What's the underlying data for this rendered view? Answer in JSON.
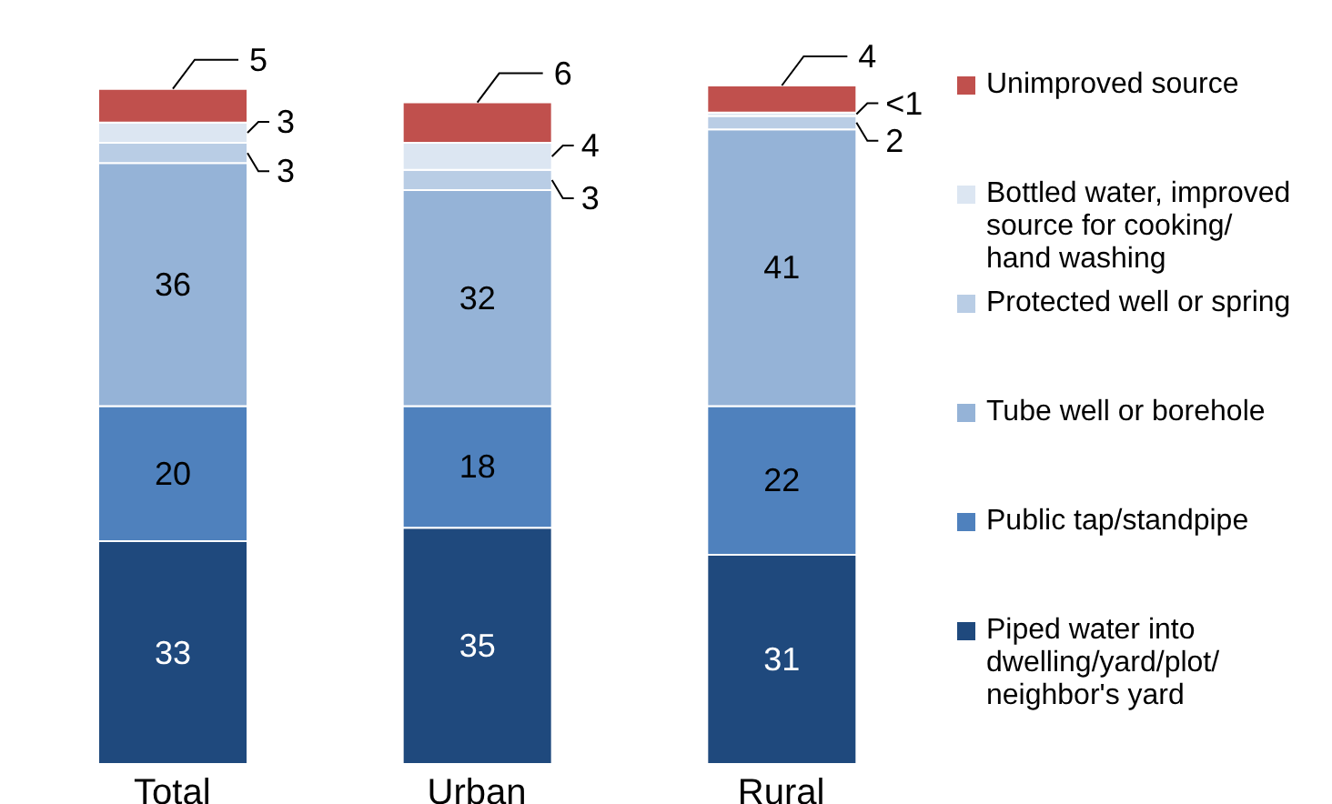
{
  "chart_data": {
    "type": "bar",
    "stacked": true,
    "categories": [
      "Total",
      "Urban",
      "Rural"
    ],
    "legend": "right",
    "series": [
      {
        "name": "Piped water into dwelling/yard/plot/ neighbor's yard",
        "color": "#1f497d",
        "values": [
          33,
          35,
          31
        ],
        "value_labels": [
          "33",
          "35",
          "31"
        ]
      },
      {
        "name": "Public tap/standpipe",
        "color": "#4f81bd",
        "values": [
          20,
          18,
          22
        ],
        "value_labels": [
          "20",
          "18",
          "22"
        ]
      },
      {
        "name": "Tube well or borehole",
        "color": "#95b3d7",
        "values": [
          36,
          32,
          41
        ],
        "value_labels": [
          "36",
          "32",
          "41"
        ]
      },
      {
        "name": "Protected well or spring",
        "color": "#b9cde5",
        "values": [
          3,
          3,
          2
        ],
        "value_labels": [
          "3",
          "3",
          "2"
        ]
      },
      {
        "name": "Bottled water, improved source for cooking/ hand washing",
        "color": "#dce6f2",
        "values": [
          3,
          4,
          0.5
        ],
        "value_labels": [
          "3",
          "4",
          "<1"
        ]
      },
      {
        "name": "Unimproved source",
        "color": "#c0504d",
        "values": [
          5,
          6,
          4
        ],
        "value_labels": [
          "5",
          "6",
          "4"
        ]
      }
    ]
  }
}
